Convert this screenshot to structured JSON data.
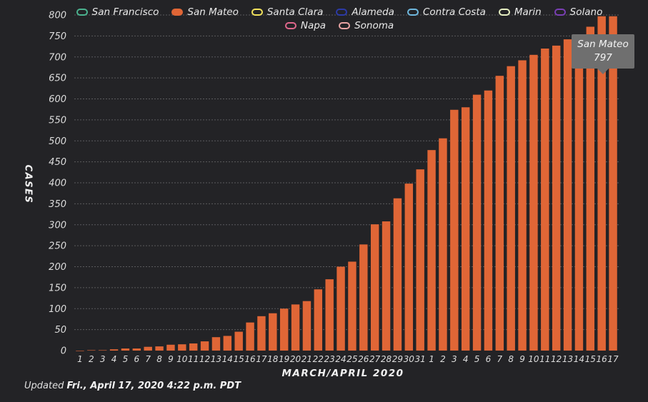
{
  "legend": [
    {
      "name": "San Francisco",
      "color": "#4bb38f",
      "filled": false
    },
    {
      "name": "San Mateo",
      "color": "#e06636",
      "filled": true
    },
    {
      "name": "Santa Clara",
      "color": "#f2e25c",
      "filled": false
    },
    {
      "name": "Alameda",
      "color": "#2c3aa7",
      "filled": false
    },
    {
      "name": "Contra Costa",
      "color": "#6fb8de",
      "filled": false
    },
    {
      "name": "Marin",
      "color": "#e6efc2",
      "filled": false
    },
    {
      "name": "Solano",
      "color": "#7a3fb5",
      "filled": false
    },
    {
      "name": "Napa",
      "color": "#e0678c",
      "filled": false
    },
    {
      "name": "Sonoma",
      "color": "#e8a3a3",
      "filled": false
    }
  ],
  "tooltip": {
    "series": "San Mateo",
    "value": "797"
  },
  "updated": {
    "prefix": "Updated",
    "date": "Fri., April 17, 2020 4:22 p.m. PDT"
  },
  "chart_data": {
    "type": "bar",
    "xlabel": "MARCH/APRIL 2020",
    "ylabel": "CASES",
    "ylim": [
      0,
      800
    ],
    "yticks": [
      0,
      50,
      100,
      150,
      200,
      250,
      300,
      350,
      400,
      450,
      500,
      550,
      600,
      650,
      700,
      750,
      800
    ],
    "grid": true,
    "bar_color": "#e06636",
    "categories": [
      "1",
      "2",
      "3",
      "4",
      "5",
      "6",
      "7",
      "8",
      "9",
      "10",
      "11",
      "12",
      "13",
      "14",
      "15",
      "16",
      "17",
      "18",
      "19",
      "20",
      "21",
      "22",
      "23",
      "24",
      "25",
      "26",
      "27",
      "28",
      "29",
      "30",
      "31",
      "1",
      "2",
      "3",
      "4",
      "5",
      "6",
      "7",
      "8",
      "9",
      "10",
      "11",
      "12",
      "13",
      "14",
      "15",
      "16",
      "17"
    ],
    "series": [
      {
        "name": "San Mateo",
        "values": [
          0,
          1,
          1,
          3,
          5,
          5,
          9,
          10,
          14,
          15,
          17,
          22,
          32,
          35,
          45,
          67,
          82,
          89,
          100,
          110,
          118,
          146,
          170,
          200,
          212,
          253,
          301,
          308,
          363,
          398,
          432,
          478,
          506,
          574,
          580,
          610,
          620,
          655,
          678,
          692,
          705,
          720,
          727,
          742,
          751,
          772,
          797,
          797
        ]
      }
    ]
  }
}
